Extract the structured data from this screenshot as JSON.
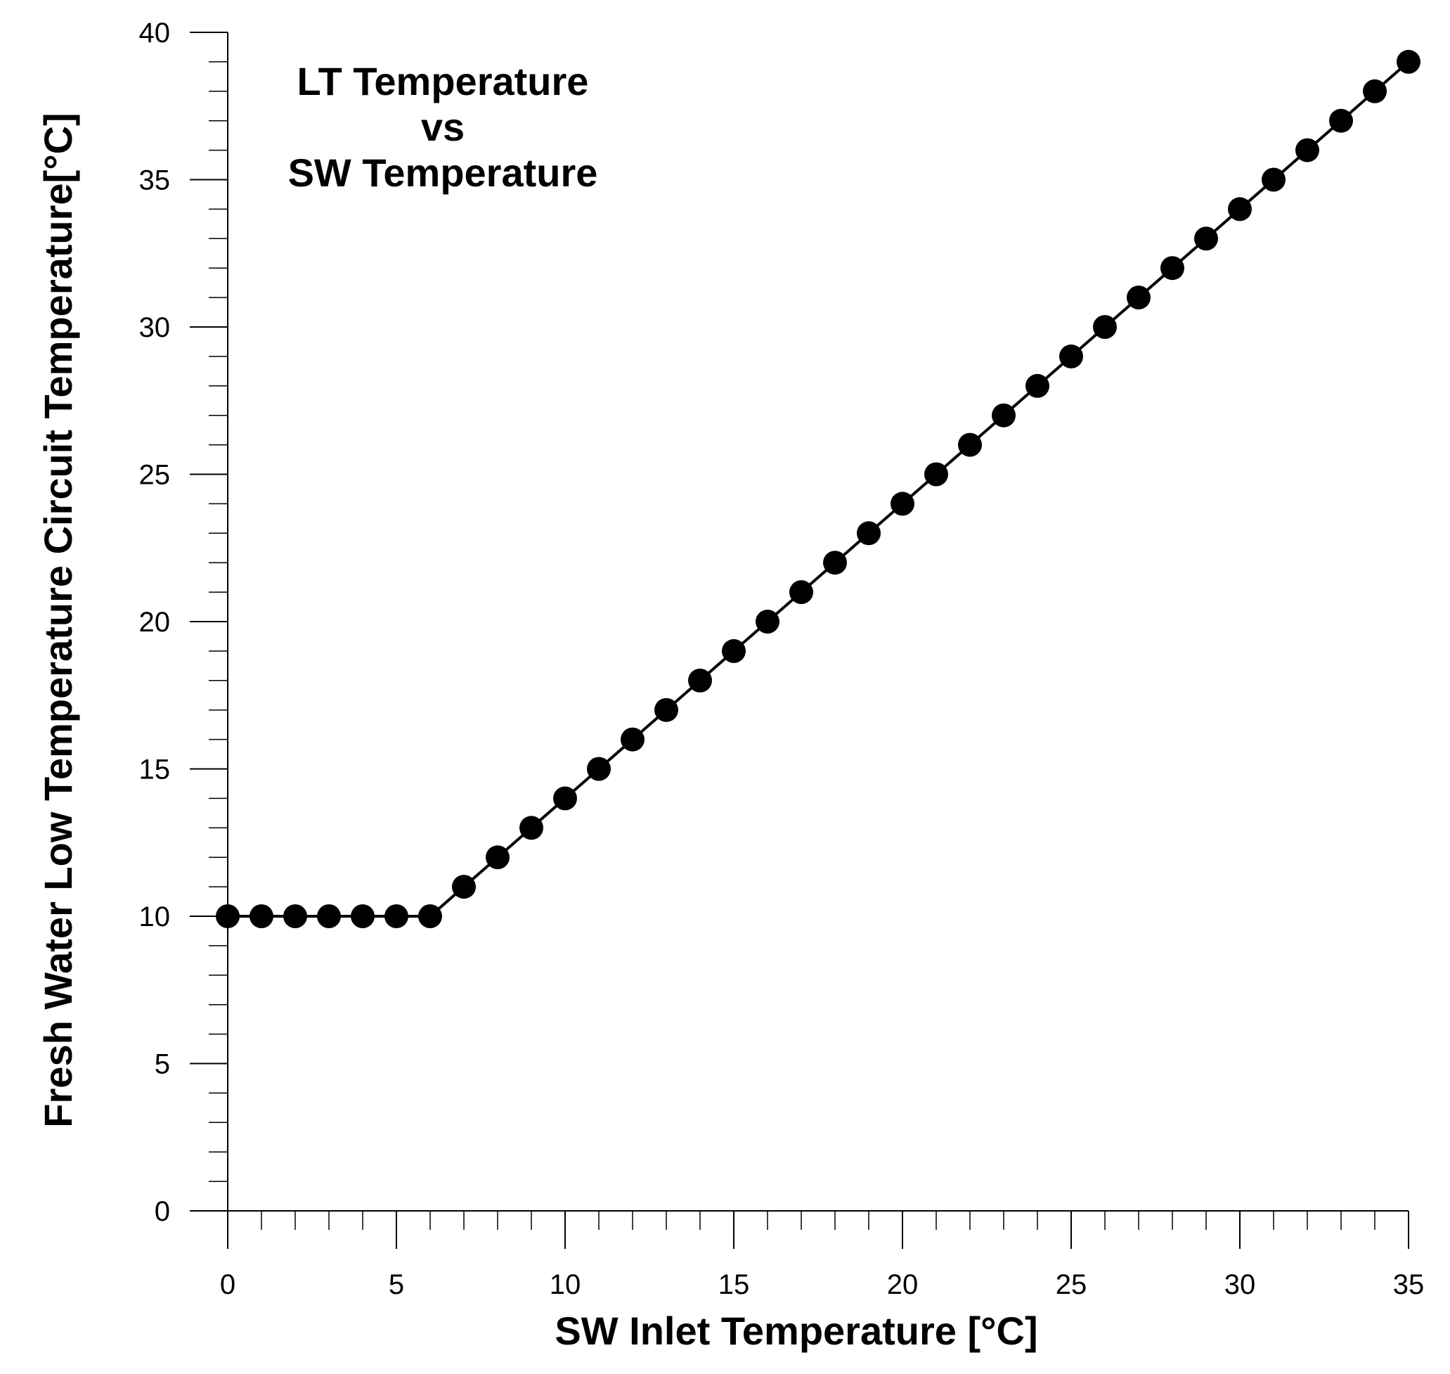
{
  "chart_data": {
    "type": "line",
    "title_lines": [
      "LT Temperature",
      "vs",
      "SW Temperature"
    ],
    "xlabel": "SW Inlet Temperature [°C]",
    "ylabel": "Fresh Water Low Temperature Circuit Temperature[°C]",
    "xlim": [
      0,
      35
    ],
    "ylim": [
      0,
      40
    ],
    "x_major_ticks": [
      0,
      5,
      10,
      15,
      20,
      25,
      30,
      35
    ],
    "x_tick_labels": [
      "0",
      "5",
      "10",
      "15",
      "20",
      "25",
      "30",
      "35"
    ],
    "x_minor_step": 1,
    "y_major_ticks": [
      0,
      5,
      10,
      15,
      20,
      25,
      30,
      35,
      40
    ],
    "y_tick_labels": [
      "0",
      "5",
      "10",
      "15",
      "20",
      "25",
      "30",
      "35",
      "40"
    ],
    "y_minor_step": 1,
    "grid": false,
    "series": [
      {
        "name": "LT Temperature",
        "marker": "filled-circle",
        "color": "#000000",
        "x": [
          0,
          1,
          2,
          3,
          4,
          5,
          6,
          7,
          8,
          9,
          10,
          11,
          12,
          13,
          14,
          15,
          16,
          17,
          18,
          19,
          20,
          21,
          22,
          23,
          24,
          25,
          26,
          27,
          28,
          29,
          30,
          31,
          32,
          33,
          34,
          35
        ],
        "y": [
          10,
          10,
          10,
          10,
          10,
          10,
          10,
          11,
          12,
          13,
          14,
          15,
          16,
          17,
          18,
          19,
          20,
          21,
          22,
          23,
          24,
          25,
          26,
          27,
          28,
          29,
          30,
          31,
          32,
          33,
          34,
          35,
          36,
          37,
          38,
          39
        ]
      }
    ]
  }
}
